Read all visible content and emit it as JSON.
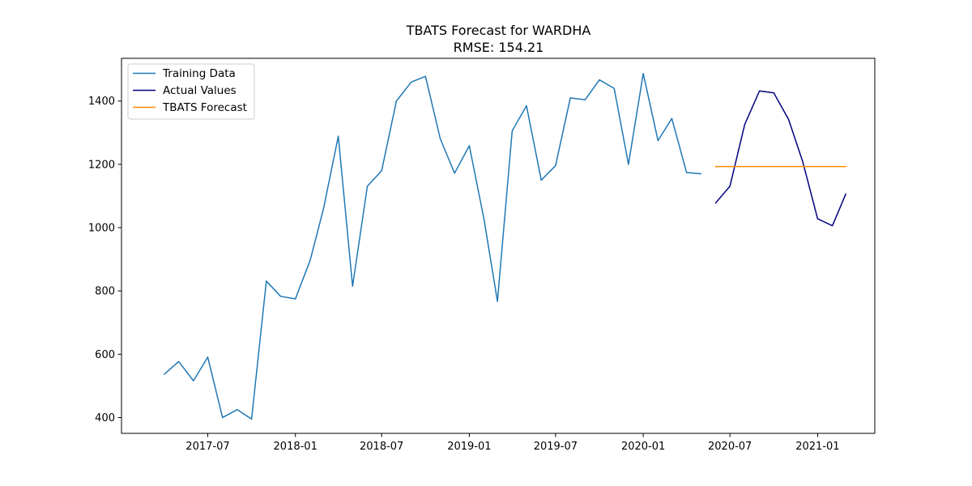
{
  "chart_data": {
    "type": "line",
    "title": "TBATS Forecast for WARDHA",
    "subtitle": "RMSE: 154.21",
    "xlabel": "",
    "ylabel": "",
    "x_range": [
      "2017-01-01",
      "2021-05-01"
    ],
    "ylim": [
      350,
      1535
    ],
    "x_ticks": [
      {
        "date": "2017-07-01",
        "label": "2017-07"
      },
      {
        "date": "2018-01-01",
        "label": "2018-01"
      },
      {
        "date": "2018-07-01",
        "label": "2018-07"
      },
      {
        "date": "2019-01-01",
        "label": "2019-01"
      },
      {
        "date": "2019-07-01",
        "label": "2019-07"
      },
      {
        "date": "2020-01-01",
        "label": "2020-01"
      },
      {
        "date": "2020-07-01",
        "label": "2020-07"
      },
      {
        "date": "2021-01-01",
        "label": "2021-01"
      }
    ],
    "y_ticks": [
      {
        "value": 400,
        "label": "400"
      },
      {
        "value": 600,
        "label": "600"
      },
      {
        "value": 800,
        "label": "800"
      },
      {
        "value": 1000,
        "label": "1000"
      },
      {
        "value": 1200,
        "label": "1200"
      },
      {
        "value": 1400,
        "label": "1400"
      }
    ],
    "grid": false,
    "legend_position": "top-left",
    "series": [
      {
        "name": "Training Data",
        "color": "#1f77b4",
        "points": [
          {
            "x": "2017-04-01",
            "y": 537
          },
          {
            "x": "2017-05-01",
            "y": 577
          },
          {
            "x": "2017-06-01",
            "y": 516
          },
          {
            "x": "2017-07-01",
            "y": 591
          },
          {
            "x": "2017-08-01",
            "y": 400
          },
          {
            "x": "2017-09-01",
            "y": 425
          },
          {
            "x": "2017-10-01",
            "y": 395
          },
          {
            "x": "2017-11-01",
            "y": 831
          },
          {
            "x": "2017-12-01",
            "y": 783
          },
          {
            "x": "2018-01-01",
            "y": 775
          },
          {
            "x": "2018-02-01",
            "y": 897
          },
          {
            "x": "2018-03-01",
            "y": 1060
          },
          {
            "x": "2018-04-01",
            "y": 1289
          },
          {
            "x": "2018-05-01",
            "y": 815
          },
          {
            "x": "2018-06-01",
            "y": 1131
          },
          {
            "x": "2018-07-01",
            "y": 1180
          },
          {
            "x": "2018-08-01",
            "y": 1400
          },
          {
            "x": "2018-09-01",
            "y": 1460
          },
          {
            "x": "2018-10-01",
            "y": 1478
          },
          {
            "x": "2018-11-01",
            "y": 1281
          },
          {
            "x": "2018-12-01",
            "y": 1172
          },
          {
            "x": "2019-01-01",
            "y": 1259
          },
          {
            "x": "2019-02-01",
            "y": 1025
          },
          {
            "x": "2019-03-01",
            "y": 767
          },
          {
            "x": "2019-04-01",
            "y": 1306
          },
          {
            "x": "2019-05-01",
            "y": 1385
          },
          {
            "x": "2019-06-01",
            "y": 1150
          },
          {
            "x": "2019-07-01",
            "y": 1196
          },
          {
            "x": "2019-08-01",
            "y": 1410
          },
          {
            "x": "2019-09-01",
            "y": 1404
          },
          {
            "x": "2019-10-01",
            "y": 1467
          },
          {
            "x": "2019-11-01",
            "y": 1440
          },
          {
            "x": "2019-12-01",
            "y": 1200
          },
          {
            "x": "2020-01-01",
            "y": 1487
          },
          {
            "x": "2020-02-01",
            "y": 1275
          },
          {
            "x": "2020-03-01",
            "y": 1345
          },
          {
            "x": "2020-04-01",
            "y": 1174
          },
          {
            "x": "2020-05-01",
            "y": 1170
          }
        ]
      },
      {
        "name": "Actual Values",
        "color": "#000080",
        "points": [
          {
            "x": "2020-06-01",
            "y": 1078
          },
          {
            "x": "2020-07-01",
            "y": 1131
          },
          {
            "x": "2020-08-01",
            "y": 1326
          },
          {
            "x": "2020-09-01",
            "y": 1432
          },
          {
            "x": "2020-10-01",
            "y": 1426
          },
          {
            "x": "2020-11-01",
            "y": 1342
          },
          {
            "x": "2020-12-01",
            "y": 1207
          },
          {
            "x": "2021-01-01",
            "y": 1028
          },
          {
            "x": "2021-02-01",
            "y": 1006
          },
          {
            "x": "2021-03-01",
            "y": 1106
          }
        ]
      },
      {
        "name": "TBATS Forecast",
        "color": "#ff8c00",
        "points": [
          {
            "x": "2020-06-01",
            "y": 1193
          },
          {
            "x": "2020-07-01",
            "y": 1193
          },
          {
            "x": "2020-08-01",
            "y": 1193
          },
          {
            "x": "2020-09-01",
            "y": 1193
          },
          {
            "x": "2020-10-01",
            "y": 1193
          },
          {
            "x": "2020-11-01",
            "y": 1193
          },
          {
            "x": "2020-12-01",
            "y": 1193
          },
          {
            "x": "2021-01-01",
            "y": 1193
          },
          {
            "x": "2021-02-01",
            "y": 1193
          },
          {
            "x": "2021-03-01",
            "y": 1193
          }
        ]
      }
    ]
  }
}
